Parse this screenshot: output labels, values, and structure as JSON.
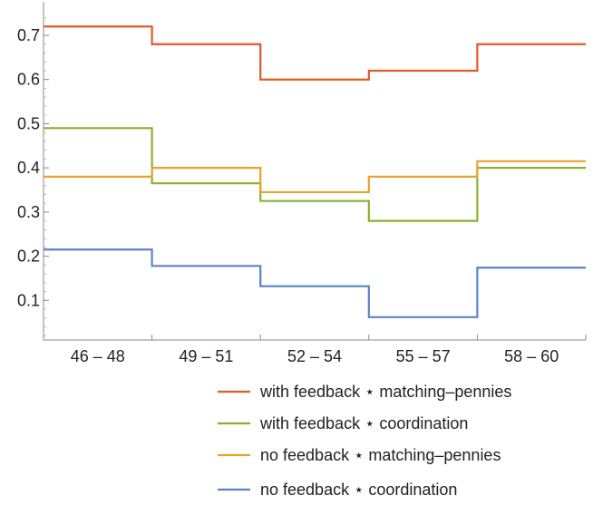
{
  "chart_data": {
    "type": "line",
    "step": true,
    "categories": [
      "46 – 48",
      "49 – 51",
      "52 – 54",
      "55 – 57",
      "58 – 60"
    ],
    "ylim": [
      0,
      0.75
    ],
    "yticks": [
      0.1,
      0.2,
      0.3,
      0.4,
      0.5,
      0.6,
      0.7
    ],
    "yticklabels": [
      "0.1",
      "0.2",
      "0.3",
      "0.4",
      "0.5",
      "0.6",
      "0.7"
    ],
    "legend_position": "bottom-right",
    "series": [
      {
        "name": "with feedback ⋆ matching–pennies",
        "color": "#E05A2B",
        "values": [
          0.72,
          0.68,
          0.6,
          0.62,
          0.68
        ]
      },
      {
        "name": "with feedback ⋆ coordination",
        "color": "#8CB02F",
        "values": [
          0.49,
          0.365,
          0.325,
          0.28,
          0.4
        ]
      },
      {
        "name": "no feedback ⋆ matching–pennies",
        "color": "#E8A32A",
        "values": [
          0.38,
          0.4,
          0.345,
          0.38,
          0.415
        ]
      },
      {
        "name": "no feedback ⋆ coordination",
        "color": "#5B84C4",
        "values": [
          0.215,
          0.178,
          0.132,
          0.062,
          0.174
        ]
      }
    ]
  }
}
